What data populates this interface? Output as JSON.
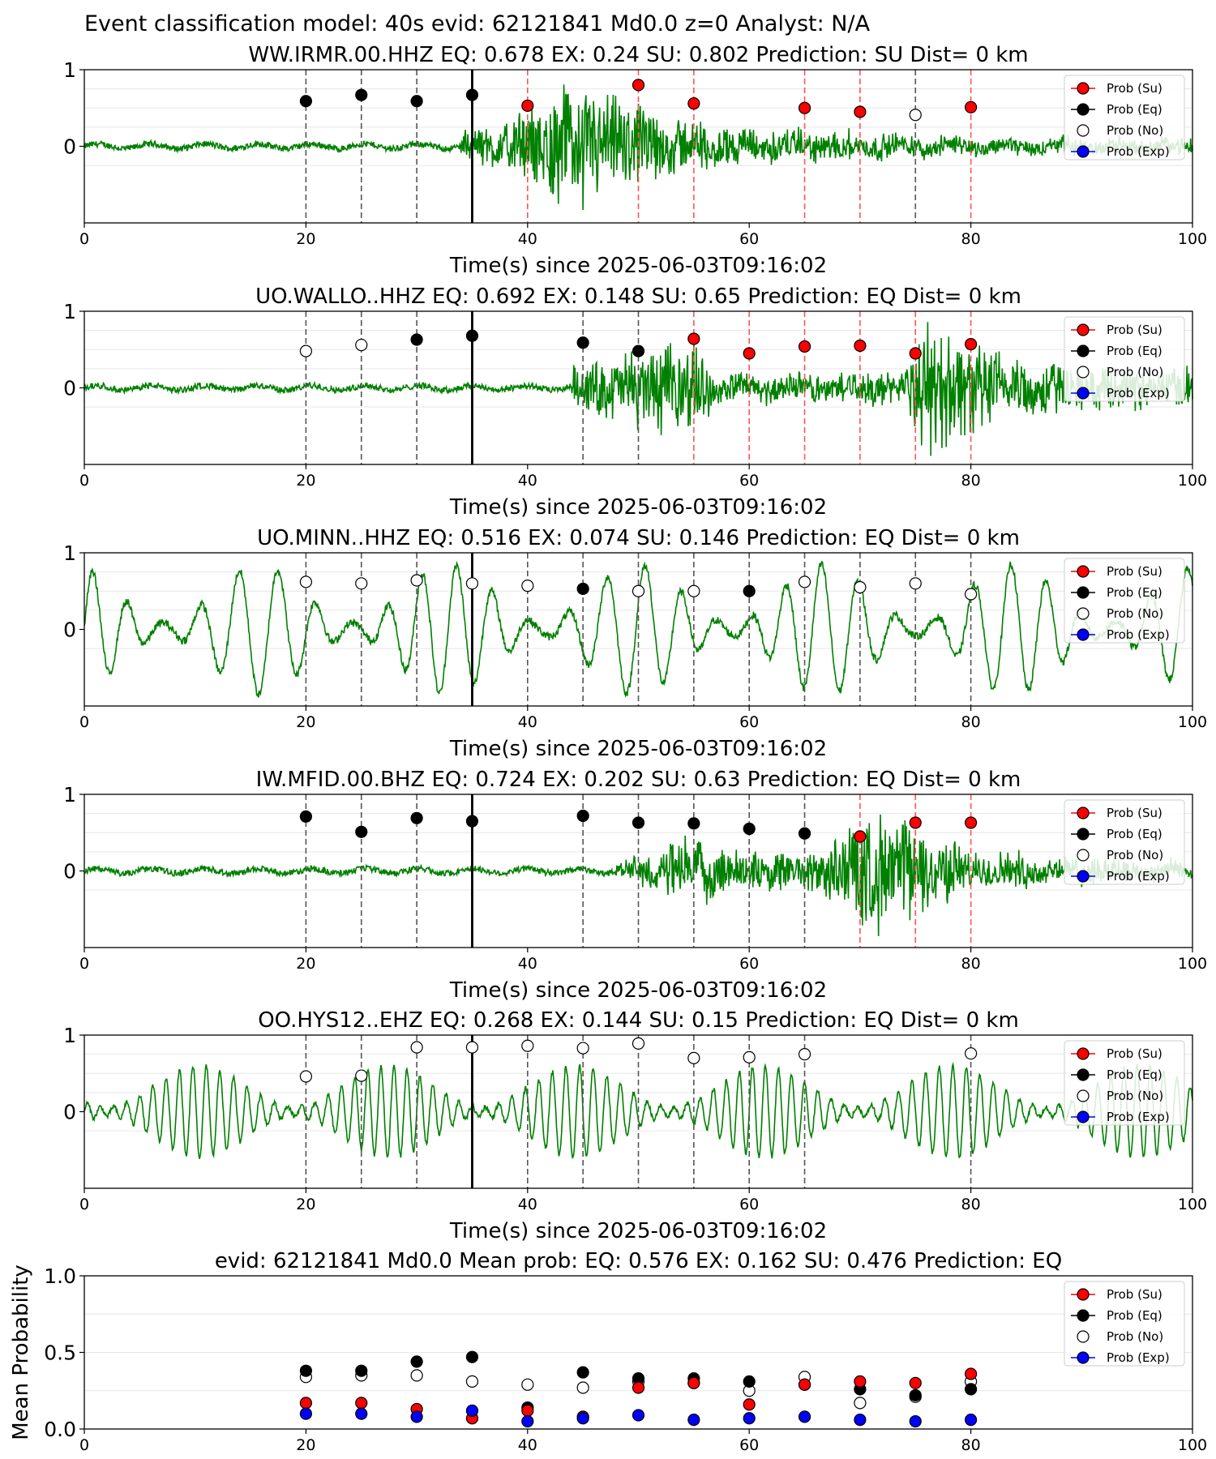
{
  "suptitle": "Event classification model: 40s evid: 62121841 Md0.0 z=0 Analyst: N/A",
  "colors": {
    "su": "#ff0000",
    "eq": "#000000",
    "no": "#ffffff",
    "exp": "#0000ff",
    "trace": "#008000",
    "su_line": "#ff5555"
  },
  "legend": [
    "Prob (Su)",
    "Prob (Eq)",
    "Prob (No)",
    "Prob (Exp)"
  ],
  "chart_data": [
    {
      "type": "scatter",
      "title": "WW.IRMR.00.HHZ   EQ: 0.678   EX: 0.24  SU: 0.802   Prediction: SU    Dist= 0 km",
      "xlabel": "Time(s) since 2025-06-03T09:16:02",
      "xlim": [
        0,
        100
      ],
      "ylim": [
        -1,
        1
      ],
      "xticks": [
        "0",
        "20",
        "40",
        "60",
        "80",
        "100"
      ],
      "yticks": [
        "0",
        "1"
      ],
      "pick_time": 35,
      "trace": {
        "amplitude": 0.9,
        "onset": 34,
        "energy": [
          [
            34,
            0.2
          ],
          [
            40,
            0.5
          ],
          [
            44,
            1.0
          ],
          [
            52,
            0.5
          ],
          [
            58,
            0.3
          ],
          [
            80,
            0.12
          ]
        ],
        "noise": 0.04
      },
      "points": [
        {
          "x": 20,
          "y": 0.59,
          "cls": "eq"
        },
        {
          "x": 25,
          "y": 0.67,
          "cls": "eq"
        },
        {
          "x": 30,
          "y": 0.59,
          "cls": "eq"
        },
        {
          "x": 35,
          "y": 0.67,
          "cls": "eq"
        },
        {
          "x": 40,
          "y": 0.53,
          "cls": "su"
        },
        {
          "x": 50,
          "y": 0.8,
          "cls": "su"
        },
        {
          "x": 55,
          "y": 0.56,
          "cls": "su"
        },
        {
          "x": 65,
          "y": 0.5,
          "cls": "su"
        },
        {
          "x": 70,
          "y": 0.45,
          "cls": "su"
        },
        {
          "x": 75,
          "y": 0.41,
          "cls": "no"
        },
        {
          "x": 80,
          "y": 0.51,
          "cls": "su"
        }
      ]
    },
    {
      "type": "scatter",
      "title": "UO.WALLO..HHZ   EQ: 0.692   EX: 0.148   SU: 0.65    Prediction: EQ     Dist= 0 km",
      "xlabel": "Time(s) since 2025-06-03T09:16:02",
      "xlim": [
        0,
        100
      ],
      "ylim": [
        -1,
        1
      ],
      "xticks": [
        "0",
        "20",
        "40",
        "60",
        "80",
        "100"
      ],
      "yticks": [
        "0",
        "1"
      ],
      "pick_time": 35,
      "trace": {
        "amplitude": 0.9,
        "onset": 44,
        "energy": [
          [
            44,
            0.3
          ],
          [
            50,
            0.6
          ],
          [
            55,
            0.7
          ],
          [
            57,
            0.2
          ],
          [
            74,
            0.25
          ],
          [
            76,
            1.0
          ],
          [
            82,
            0.6
          ],
          [
            90,
            0.3
          ],
          [
            100,
            0.3
          ]
        ],
        "noise": 0.04
      },
      "points": [
        {
          "x": 20,
          "y": 0.48,
          "cls": "no"
        },
        {
          "x": 25,
          "y": 0.56,
          "cls": "no"
        },
        {
          "x": 30,
          "y": 0.63,
          "cls": "eq"
        },
        {
          "x": 35,
          "y": 0.68,
          "cls": "eq"
        },
        {
          "x": 45,
          "y": 0.59,
          "cls": "eq"
        },
        {
          "x": 50,
          "y": 0.48,
          "cls": "eq"
        },
        {
          "x": 55,
          "y": 0.64,
          "cls": "su"
        },
        {
          "x": 60,
          "y": 0.45,
          "cls": "su"
        },
        {
          "x": 65,
          "y": 0.54,
          "cls": "su"
        },
        {
          "x": 70,
          "y": 0.55,
          "cls": "su"
        },
        {
          "x": 75,
          "y": 0.45,
          "cls": "su"
        },
        {
          "x": 80,
          "y": 0.57,
          "cls": "su"
        }
      ]
    },
    {
      "type": "scatter",
      "title": "UO.MINN..HHZ   EQ: 0.516   EX: 0.074   SU: 0.146    Prediction: EQ     Dist= 0 km",
      "xlabel": "Time(s) since 2025-06-03T09:16:02",
      "xlim": [
        0,
        100
      ],
      "ylim": [
        -1,
        1
      ],
      "xticks": [
        "0",
        "20",
        "40",
        "60",
        "80",
        "100"
      ],
      "yticks": [
        "0",
        "1"
      ],
      "pick_time": 35,
      "trace": {
        "amplitude": 0.85,
        "onset": 0,
        "energy": [
          [
            0,
            0.85
          ],
          [
            100,
            0.85
          ]
        ],
        "noise": 0.05,
        "oscillatory": true,
        "period": 3.3
      },
      "points": [
        {
          "x": 20,
          "y": 0.62,
          "cls": "no"
        },
        {
          "x": 25,
          "y": 0.6,
          "cls": "no"
        },
        {
          "x": 30,
          "y": 0.64,
          "cls": "no"
        },
        {
          "x": 35,
          "y": 0.6,
          "cls": "no"
        },
        {
          "x": 40,
          "y": 0.57,
          "cls": "no"
        },
        {
          "x": 45,
          "y": 0.53,
          "cls": "eq"
        },
        {
          "x": 50,
          "y": 0.5,
          "cls": "no"
        },
        {
          "x": 55,
          "y": 0.5,
          "cls": "no"
        },
        {
          "x": 60,
          "y": 0.5,
          "cls": "eq"
        },
        {
          "x": 65,
          "y": 0.62,
          "cls": "no"
        },
        {
          "x": 70,
          "y": 0.55,
          "cls": "no"
        },
        {
          "x": 75,
          "y": 0.6,
          "cls": "no"
        },
        {
          "x": 80,
          "y": 0.46,
          "cls": "no"
        }
      ]
    },
    {
      "type": "scatter",
      "title": "IW.MFID.00.BHZ   EQ: 0.724   EX: 0.202   SU: 0.63    Prediction: EQ     Dist= 0 km",
      "xlabel": "Time(s) since 2025-06-03T09:16:02",
      "xlim": [
        0,
        100
      ],
      "ylim": [
        -1,
        1
      ],
      "xticks": [
        "0",
        "20",
        "40",
        "60",
        "80",
        "100"
      ],
      "yticks": [
        "0",
        "1"
      ],
      "pick_time": 35,
      "trace": {
        "amplitude": 0.9,
        "onset": 48,
        "energy": [
          [
            48,
            0.1
          ],
          [
            54,
            0.5
          ],
          [
            60,
            0.3
          ],
          [
            66,
            0.3
          ],
          [
            70,
            0.9
          ],
          [
            74,
            0.8
          ],
          [
            80,
            0.3
          ],
          [
            100,
            0.1
          ]
        ],
        "noise": 0.04
      },
      "points": [
        {
          "x": 20,
          "y": 0.71,
          "cls": "eq"
        },
        {
          "x": 25,
          "y": 0.51,
          "cls": "eq"
        },
        {
          "x": 30,
          "y": 0.69,
          "cls": "eq"
        },
        {
          "x": 35,
          "y": 0.65,
          "cls": "eq"
        },
        {
          "x": 45,
          "y": 0.72,
          "cls": "eq"
        },
        {
          "x": 50,
          "y": 0.63,
          "cls": "eq"
        },
        {
          "x": 55,
          "y": 0.62,
          "cls": "eq"
        },
        {
          "x": 60,
          "y": 0.55,
          "cls": "eq"
        },
        {
          "x": 65,
          "y": 0.49,
          "cls": "eq"
        },
        {
          "x": 70,
          "y": 0.45,
          "cls": "su"
        },
        {
          "x": 75,
          "y": 0.63,
          "cls": "su"
        },
        {
          "x": 80,
          "y": 0.63,
          "cls": "su"
        }
      ]
    },
    {
      "type": "scatter",
      "title": "OO.HYS12..EHZ   EQ: 0.268   EX: 0.144   SU: 0.15    Prediction: EQ     Dist= 0 km",
      "xlabel": "Time(s) since 2025-06-03T09:16:02",
      "xlim": [
        0,
        100
      ],
      "ylim": [
        -1,
        1
      ],
      "xticks": [
        "0",
        "20",
        "40",
        "60",
        "80",
        "100"
      ],
      "yticks": [
        "0",
        "1"
      ],
      "pick_time": 35,
      "trace": {
        "amplitude": 0.6,
        "onset": 0,
        "energy": [
          [
            0,
            0.6
          ],
          [
            100,
            0.6
          ]
        ],
        "noise": 0.03,
        "oscillatory": true,
        "period": 1.2
      },
      "points": [
        {
          "x": 20,
          "y": 0.46,
          "cls": "no"
        },
        {
          "x": 25,
          "y": 0.47,
          "cls": "no"
        },
        {
          "x": 30,
          "y": 0.84,
          "cls": "no"
        },
        {
          "x": 35,
          "y": 0.84,
          "cls": "no"
        },
        {
          "x": 40,
          "y": 0.86,
          "cls": "no"
        },
        {
          "x": 45,
          "y": 0.83,
          "cls": "no"
        },
        {
          "x": 50,
          "y": 0.89,
          "cls": "no"
        },
        {
          "x": 55,
          "y": 0.7,
          "cls": "no"
        },
        {
          "x": 60,
          "y": 0.71,
          "cls": "no"
        },
        {
          "x": 65,
          "y": 0.75,
          "cls": "no"
        },
        {
          "x": 80,
          "y": 0.76,
          "cls": "no"
        }
      ]
    },
    {
      "type": "scatter",
      "title": "evid: 62121841  Md0.0   Mean prob:    EQ: 0.576   EX: 0.162   SU: 0.476   Prediction: EQ",
      "xlabel": "",
      "ylabel": "Mean Probability",
      "xlim": [
        0,
        100
      ],
      "ylim": [
        0,
        1
      ],
      "xticks": [
        "0",
        "20",
        "40",
        "60",
        "80",
        "100"
      ],
      "yticks": [
        "0.0",
        "0.5",
        "1.0"
      ],
      "series": [
        {
          "name": "Prob (No)",
          "cls": "no",
          "x": [
            20,
            25,
            30,
            35,
            40,
            45,
            50,
            55,
            60,
            65,
            70,
            75,
            80
          ],
          "values": [
            0.34,
            0.35,
            0.35,
            0.31,
            0.29,
            0.27,
            0.31,
            0.3,
            0.25,
            0.34,
            0.17,
            0.21,
            0.31
          ]
        },
        {
          "name": "Prob (Eq)",
          "cls": "eq",
          "x": [
            20,
            25,
            30,
            35,
            40,
            45,
            50,
            55,
            60,
            65,
            70,
            75,
            80
          ],
          "values": [
            0.38,
            0.38,
            0.44,
            0.47,
            0.14,
            0.37,
            0.33,
            0.33,
            0.31,
            0.29,
            0.26,
            0.22,
            0.26
          ]
        },
        {
          "name": "Prob (Su)",
          "cls": "su",
          "x": [
            20,
            25,
            30,
            35,
            40,
            45,
            50,
            55,
            60,
            65,
            70,
            75,
            80
          ],
          "values": [
            0.17,
            0.17,
            0.13,
            0.07,
            0.12,
            0.08,
            0.27,
            0.3,
            0.16,
            0.29,
            0.31,
            0.3,
            0.36
          ]
        },
        {
          "name": "Prob (Exp)",
          "cls": "exp",
          "x": [
            20,
            25,
            30,
            35,
            40,
            45,
            50,
            55,
            60,
            65,
            70,
            75,
            80
          ],
          "values": [
            0.1,
            0.1,
            0.08,
            0.12,
            0.05,
            0.07,
            0.09,
            0.06,
            0.07,
            0.08,
            0.06,
            0.05,
            0.06
          ]
        }
      ]
    }
  ]
}
